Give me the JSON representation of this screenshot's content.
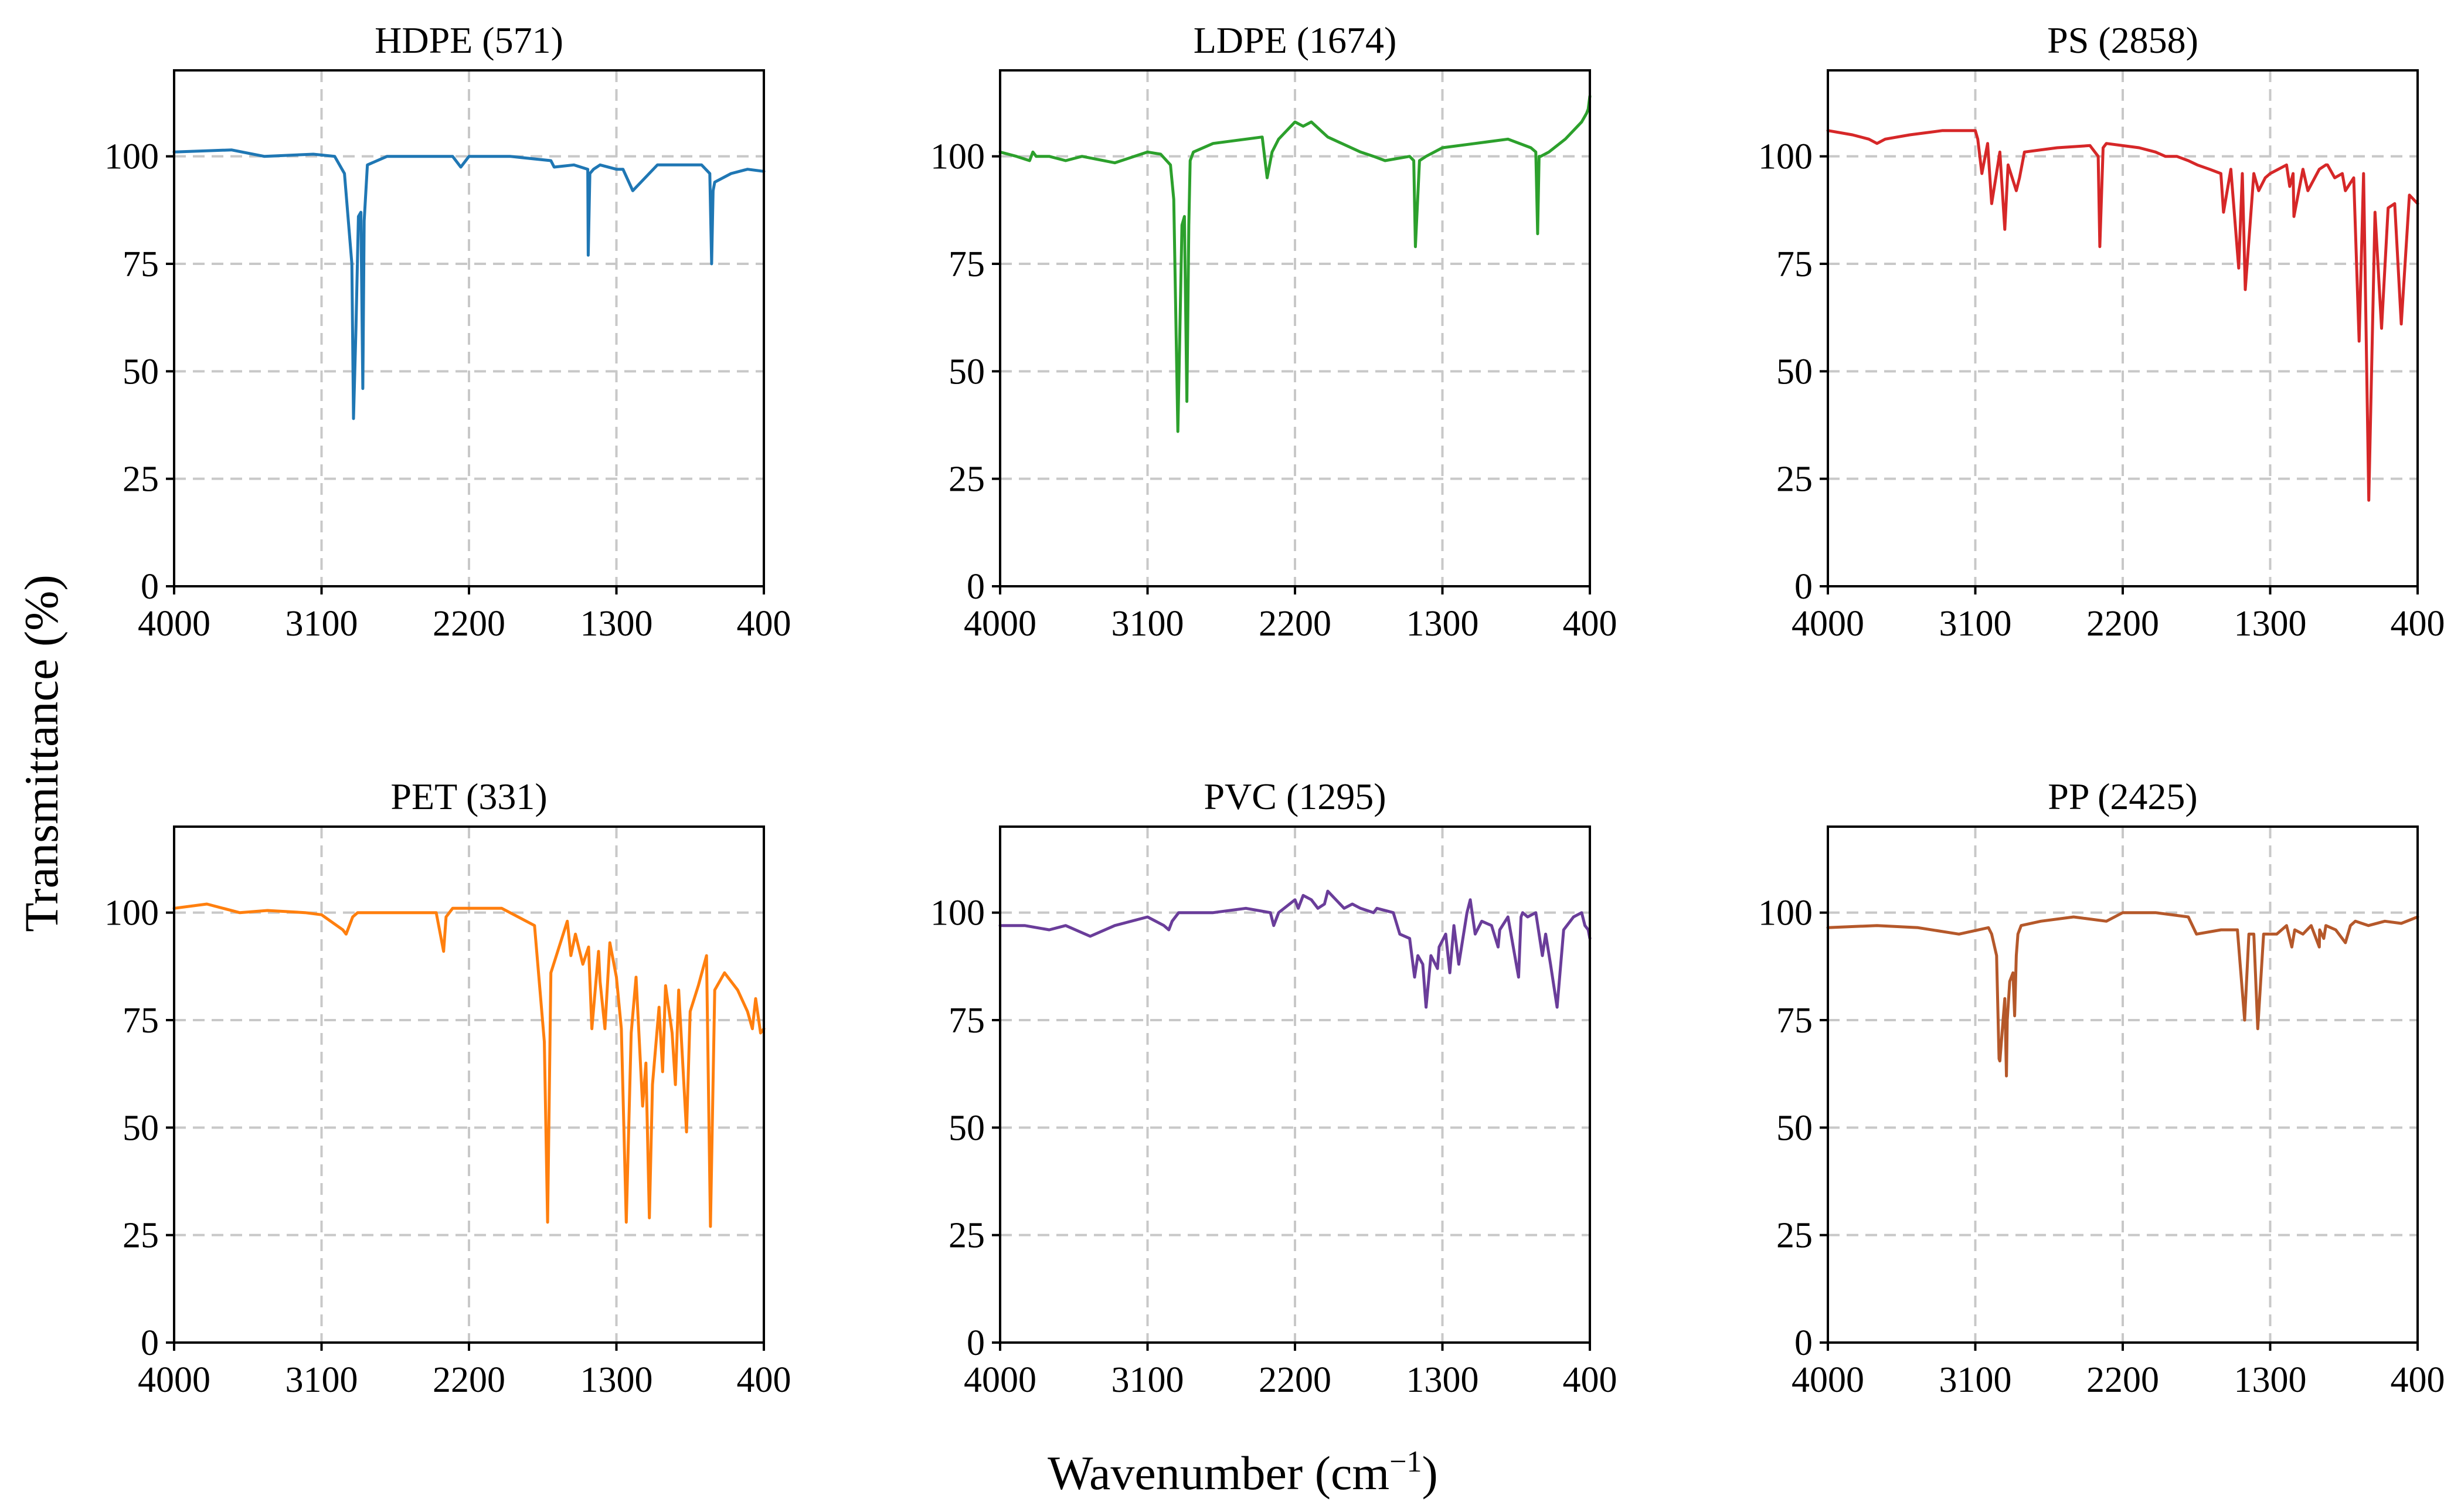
{
  "figure": {
    "ylabel": "Transmittance (%)",
    "xlabel_base": "Wavenumber (cm",
    "xlabel_sup": "−1",
    "xlabel_close": ")"
  },
  "chart_data": [
    {
      "type": "line",
      "title": "HDPE (571)",
      "color": "#1f77b4",
      "xlim": [
        4000,
        400
      ],
      "ylim": [
        0,
        120
      ],
      "xticks": [
        4000,
        3100,
        2200,
        1300,
        400
      ],
      "yticks": [
        0,
        25,
        50,
        75,
        100
      ],
      "grid": true,
      "series": [
        {
          "name": "HDPE",
          "x": [
            4000,
            3650,
            3450,
            3150,
            3020,
            2960,
            2915,
            2905,
            2890,
            2875,
            2860,
            2848,
            2840,
            2820,
            2700,
            2500,
            2300,
            2250,
            2200,
            2100,
            2000,
            1950,
            1700,
            1680,
            1560,
            1475,
            1472,
            1462,
            1440,
            1400,
            1300,
            1260,
            1200,
            1050,
            1000,
            900,
            780,
            730,
            719,
            710,
            700,
            600,
            500,
            400
          ],
          "y": [
            101,
            101.5,
            100,
            100.5,
            100,
            96,
            75,
            39,
            60,
            86,
            87,
            46,
            85,
            98,
            100,
            100,
            100,
            97.5,
            100,
            100,
            100,
            100,
            99,
            97.5,
            98,
            97,
            77,
            96,
            97,
            98,
            97,
            97,
            92,
            98,
            98,
            98,
            98,
            96,
            75,
            92,
            94,
            96,
            97,
            96.5
          ]
        }
      ]
    },
    {
      "type": "line",
      "title": "LDPE (1674)",
      "color": "#2ca02c",
      "xlim": [
        4000,
        400
      ],
      "ylim": [
        0,
        120
      ],
      "xticks": [
        4000,
        3100,
        2200,
        1300,
        400
      ],
      "yticks": [
        0,
        25,
        50,
        75,
        100
      ],
      "grid": true,
      "series": [
        {
          "name": "LDPE",
          "x": [
            4000,
            3900,
            3820,
            3800,
            3780,
            3700,
            3600,
            3500,
            3300,
            3100,
            3020,
            2960,
            2940,
            2915,
            2905,
            2890,
            2875,
            2860,
            2848,
            2840,
            2820,
            2700,
            2400,
            2370,
            2340,
            2300,
            2250,
            2200,
            2150,
            2100,
            2000,
            1800,
            1720,
            1650,
            1500,
            1475,
            1465,
            1440,
            1400,
            1300,
            1100,
            1000,
            900,
            760,
            730,
            719,
            710,
            700,
            650,
            550,
            450,
            420,
            410,
            400
          ],
          "y": [
            101,
            100,
            99,
            101,
            100,
            100,
            99,
            100,
            98.5,
            101,
            100.5,
            98,
            90,
            36,
            55,
            84,
            86,
            43,
            84,
            99,
            101,
            103,
            104.5,
            95,
            101,
            104,
            106,
            108,
            107,
            108,
            104.5,
            101,
            100,
            99,
            100,
            99,
            79,
            99,
            100,
            102,
            103,
            103.5,
            104,
            102,
            101,
            82,
            100,
            100,
            101,
            104,
            108,
            110,
            111,
            114
          ]
        }
      ]
    },
    {
      "type": "line",
      "title": "PS (2858)",
      "color": "#d62728",
      "xlim": [
        4000,
        400
      ],
      "ylim": [
        0,
        120
      ],
      "xticks": [
        4000,
        3100,
        2200,
        1300,
        400
      ],
      "yticks": [
        0,
        25,
        50,
        75,
        100
      ],
      "grid": true,
      "series": [
        {
          "name": "PS",
          "x": [
            4000,
            3850,
            3750,
            3700,
            3650,
            3500,
            3300,
            3100,
            3085,
            3060,
            3025,
            3000,
            2950,
            2920,
            2900,
            2850,
            2830,
            2800,
            2600,
            2400,
            2350,
            2340,
            2320,
            2300,
            2100,
            2000,
            1940,
            1870,
            1800,
            1745,
            1670,
            1601,
            1585,
            1540,
            1492,
            1470,
            1452,
            1400,
            1370,
            1330,
            1300,
            1200,
            1181,
            1160,
            1155,
            1100,
            1070,
            1028,
            1000,
            960,
            950,
            906,
            860,
            841,
            790,
            757,
            730,
            698,
            660,
            620,
            580,
            540,
            500,
            450,
            400
          ],
          "y": [
            106,
            105,
            104,
            103,
            104,
            105,
            106,
            106,
            104,
            96,
            103,
            89,
            101,
            83,
            98,
            92,
            95,
            101,
            102,
            102.5,
            100,
            79,
            102,
            103,
            102,
            101,
            100,
            100,
            99,
            98,
            97,
            96,
            87,
            97,
            74,
            96,
            69,
            96,
            92,
            95,
            96,
            98,
            93,
            96,
            86,
            97,
            92,
            95,
            97,
            98,
            98,
            95,
            96,
            92,
            95,
            57,
            96,
            20,
            87,
            60,
            88,
            89,
            61,
            91,
            89
          ]
        }
      ]
    },
    {
      "type": "line",
      "title": "PET (331)",
      "color": "#ff7f0e",
      "xlim": [
        4000,
        400
      ],
      "ylim": [
        0,
        120
      ],
      "xticks": [
        4000,
        3100,
        2200,
        1300,
        400
      ],
      "yticks": [
        0,
        25,
        50,
        75,
        100
      ],
      "grid": true,
      "series": [
        {
          "name": "PET",
          "x": [
            4000,
            3800,
            3600,
            3430,
            3200,
            3100,
            2970,
            2950,
            2910,
            2880,
            2750,
            2400,
            2355,
            2340,
            2300,
            2200,
            2000,
            1800,
            1740,
            1720,
            1700,
            1600,
            1578,
            1550,
            1505,
            1470,
            1450,
            1409,
            1400,
            1370,
            1340,
            1300,
            1270,
            1240,
            1210,
            1180,
            1140,
            1120,
            1099,
            1080,
            1040,
            1018,
            1000,
            960,
            940,
            920,
            872,
            850,
            800,
            750,
            726,
            700,
            640,
            600,
            560,
            500,
            470,
            450,
            420,
            400
          ],
          "y": [
            101,
            102,
            100,
            100.5,
            100,
            99.5,
            96,
            95,
            99,
            100,
            100,
            100,
            91,
            99,
            101,
            101,
            101,
            97,
            70,
            28,
            86,
            98,
            90,
            95,
            88,
            92,
            73,
            91,
            84,
            73,
            93,
            85,
            73,
            28,
            72,
            85,
            55,
            65,
            29,
            60,
            78,
            63,
            83,
            72,
            60,
            82,
            49,
            77,
            83,
            90,
            27,
            82,
            86,
            84,
            82,
            77,
            73,
            80,
            72,
            73
          ]
        }
      ]
    },
    {
      "type": "line",
      "title": "PVC (1295)",
      "color": "#6a3d9a",
      "xlim": [
        4000,
        400
      ],
      "ylim": [
        0,
        120
      ],
      "xticks": [
        4000,
        3100,
        2200,
        1300,
        400
      ],
      "yticks": [
        0,
        25,
        50,
        75,
        100
      ],
      "grid": true,
      "series": [
        {
          "name": "PVC",
          "x": [
            4000,
            3850,
            3700,
            3600,
            3450,
            3300,
            3100,
            3000,
            2970,
            2950,
            2910,
            2850,
            2700,
            2500,
            2350,
            2330,
            2300,
            2200,
            2180,
            2150,
            2100,
            2060,
            2020,
            2000,
            1950,
            1900,
            1850,
            1800,
            1720,
            1700,
            1600,
            1560,
            1500,
            1470,
            1450,
            1420,
            1400,
            1370,
            1330,
            1320,
            1280,
            1255,
            1230,
            1200,
            1150,
            1130,
            1100,
            1060,
            1000,
            960,
            950,
            900,
            835,
            820,
            810,
            780,
            730,
            690,
            670,
            640,
            600,
            560,
            500,
            450,
            430,
            410,
            400
          ],
          "y": [
            97,
            97,
            96,
            97,
            94.5,
            97,
            99,
            97,
            96,
            98,
            100,
            100,
            100,
            101,
            100,
            97,
            100,
            103,
            101,
            104,
            103,
            101,
            102,
            105,
            103,
            101,
            102,
            101,
            100,
            101,
            100,
            95,
            94,
            85,
            90,
            88,
            78,
            90,
            87,
            92,
            95,
            86,
            97,
            88,
            100,
            103,
            95,
            98,
            97,
            92,
            96,
            99,
            85,
            99,
            100,
            99,
            100,
            90,
            95,
            88,
            78,
            96,
            99,
            100,
            97,
            96,
            94
          ]
        }
      ]
    },
    {
      "type": "line",
      "title": "PP (2425)",
      "color": "#b5582a",
      "xlim": [
        4000,
        400
      ],
      "ylim": [
        0,
        120
      ],
      "xticks": [
        4000,
        3100,
        2200,
        1300,
        400
      ],
      "yticks": [
        0,
        25,
        50,
        75,
        100
      ],
      "grid": true,
      "series": [
        {
          "name": "PP",
          "x": [
            4000,
            3700,
            3450,
            3200,
            3020,
            3000,
            2970,
            2955,
            2950,
            2920,
            2910,
            2905,
            2890,
            2870,
            2860,
            2850,
            2840,
            2820,
            2700,
            2500,
            2300,
            2200,
            2000,
            1800,
            1750,
            1600,
            1500,
            1456,
            1430,
            1400,
            1376,
            1340,
            1260,
            1200,
            1168,
            1150,
            1100,
            1050,
            1000,
            998,
            973,
            960,
            900,
            841,
            810,
            780,
            700,
            600,
            500,
            400
          ],
          "y": [
            96.5,
            97,
            96.5,
            95,
            96.5,
            95,
            90,
            66,
            65.5,
            80,
            62,
            75,
            84,
            86,
            76,
            90,
            95,
            97,
            98,
            99,
            98,
            100,
            100,
            99,
            95,
            96,
            96,
            75,
            95,
            95,
            73,
            95,
            95,
            97,
            92,
            96,
            95,
            97,
            92,
            96,
            94,
            97,
            96,
            93,
            97,
            98,
            97,
            98,
            97.5,
            99
          ]
        }
      ]
    }
  ]
}
